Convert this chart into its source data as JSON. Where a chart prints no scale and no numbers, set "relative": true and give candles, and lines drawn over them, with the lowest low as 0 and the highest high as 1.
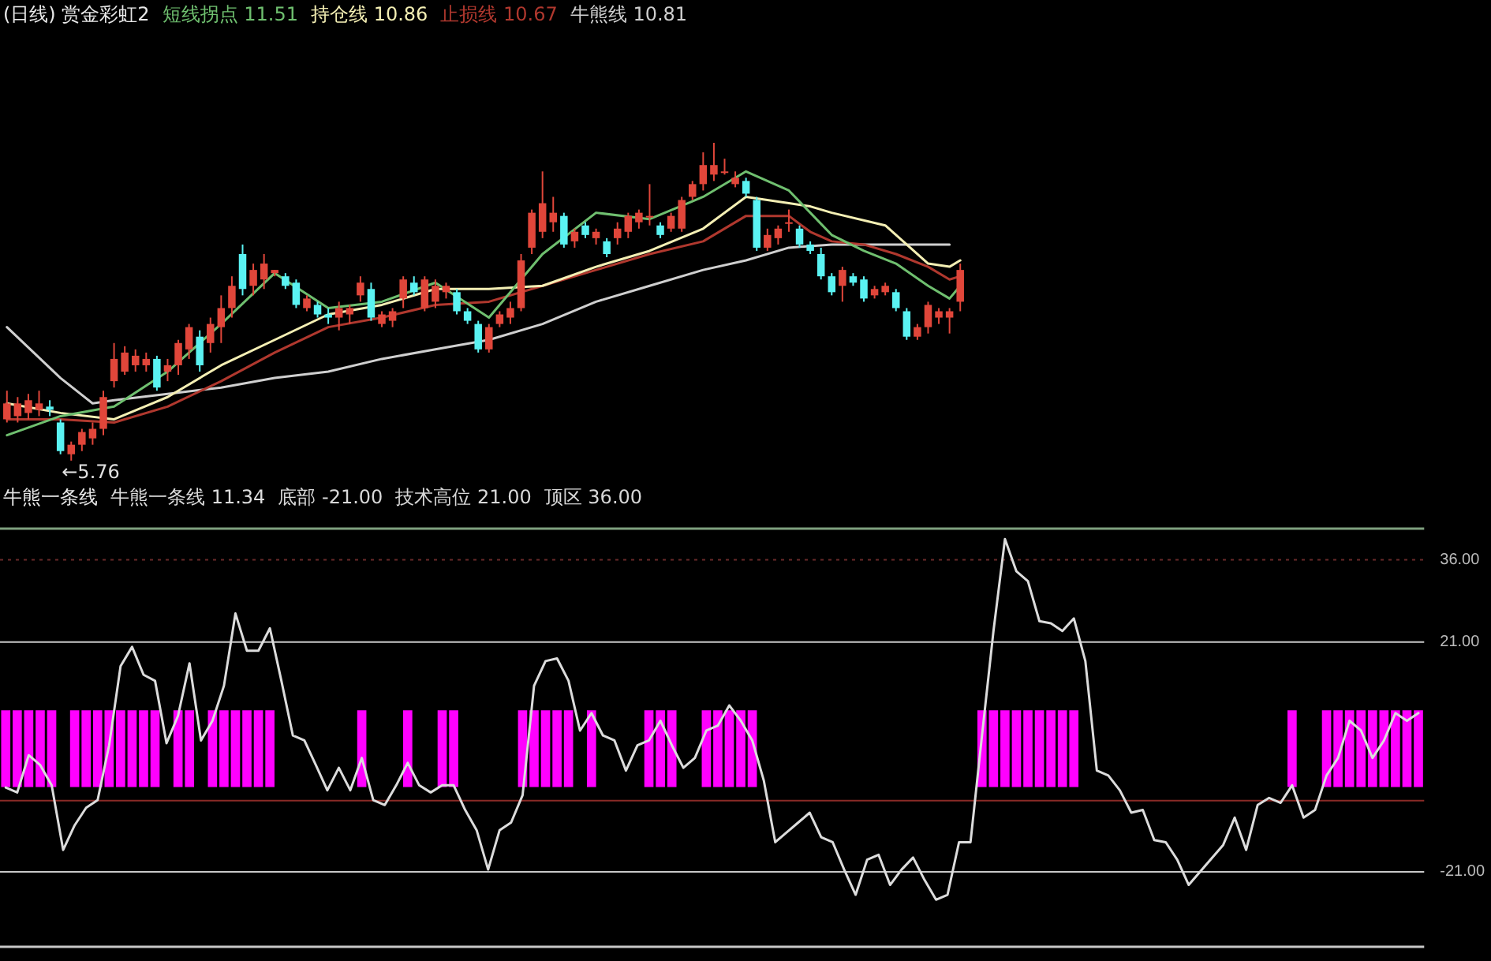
{
  "chart_data": [
    {
      "type": "candlestick",
      "title": "(日线) 赏金彩虹2",
      "relative": true,
      "tick_labels": false,
      "categories": [
        null,
        null,
        null,
        null,
        null,
        null,
        null,
        null,
        null,
        null,
        null,
        null,
        null,
        null,
        null,
        null,
        null,
        null,
        null,
        null,
        null,
        null,
        null,
        null,
        null,
        null,
        null,
        null,
        null,
        null,
        null,
        null,
        null,
        null,
        null,
        null,
        null,
        null,
        null,
        null,
        null,
        null,
        null,
        null,
        null,
        null,
        null,
        null,
        null,
        null,
        null,
        null,
        null,
        null,
        null,
        null,
        null,
        null,
        null,
        null,
        null,
        null,
        null,
        null,
        null,
        null,
        null,
        null,
        null,
        null,
        null,
        null,
        null,
        null,
        null,
        null,
        null,
        null,
        null,
        null,
        null,
        null,
        null,
        null,
        null,
        null,
        null,
        null,
        null,
        null
      ],
      "ohlc": [
        [
          0.13,
          0.22,
          0.12,
          0.18
        ],
        [
          0.14,
          0.2,
          0.12,
          0.18
        ],
        [
          0.15,
          0.21,
          0.13,
          0.19
        ],
        [
          0.16,
          0.22,
          0.14,
          0.18
        ],
        [
          0.17,
          0.19,
          0.14,
          0.16
        ],
        [
          0.12,
          0.13,
          0.02,
          0.03
        ],
        [
          0.02,
          0.06,
          0,
          0.05
        ],
        [
          0.05,
          0.1,
          0.03,
          0.09
        ],
        [
          0.07,
          0.12,
          0.05,
          0.1
        ],
        [
          0.1,
          0.22,
          0.08,
          0.2
        ],
        [
          0.25,
          0.37,
          0.23,
          0.32
        ],
        [
          0.28,
          0.36,
          0.27,
          0.34
        ],
        [
          0.3,
          0.35,
          0.28,
          0.33
        ],
        [
          0.3,
          0.34,
          0.28,
          0.32
        ],
        [
          0.32,
          0.33,
          0.22,
          0.23
        ],
        [
          0.28,
          0.32,
          0.25,
          0.3
        ],
        [
          0.3,
          0.38,
          0.27,
          0.37
        ],
        [
          0.35,
          0.43,
          0.32,
          0.42
        ],
        [
          0.39,
          0.41,
          0.28,
          0.3
        ],
        [
          0.37,
          0.45,
          0.34,
          0.43
        ],
        [
          0.42,
          0.52,
          0.37,
          0.48
        ],
        [
          0.48,
          0.58,
          0.45,
          0.55
        ],
        [
          0.65,
          0.68,
          0.52,
          0.54
        ],
        [
          0.55,
          0.62,
          0.52,
          0.6
        ],
        [
          0.57,
          0.65,
          0.54,
          0.62
        ],
        [
          0.59,
          0.6,
          0.58,
          0.6
        ],
        [
          0.58,
          0.59,
          0.54,
          0.55
        ],
        [
          0.56,
          0.57,
          0.48,
          0.49
        ],
        [
          0.48,
          0.52,
          0.47,
          0.51
        ],
        [
          0.49,
          0.5,
          0.45,
          0.46
        ],
        [
          0.46,
          0.48,
          0.43,
          0.45
        ],
        [
          0.45,
          0.5,
          0.41,
          0.48
        ],
        [
          0.46,
          0.49,
          0.43,
          0.48
        ],
        [
          0.52,
          0.58,
          0.5,
          0.56
        ],
        [
          0.54,
          0.56,
          0.44,
          0.45
        ],
        [
          0.43,
          0.47,
          0.42,
          0.46
        ],
        [
          0.44,
          0.48,
          0.42,
          0.47
        ],
        [
          0.51,
          0.58,
          0.48,
          0.57
        ],
        [
          0.56,
          0.58,
          0.52,
          0.53
        ],
        [
          0.48,
          0.58,
          0.47,
          0.57
        ],
        [
          0.5,
          0.57,
          0.48,
          0.55
        ],
        [
          0.53,
          0.56,
          0.51,
          0.55
        ],
        [
          0.53,
          0.54,
          0.46,
          0.47
        ],
        [
          0.47,
          0.48,
          0.43,
          0.44
        ],
        [
          0.43,
          0.44,
          0.34,
          0.35
        ],
        [
          0.35,
          0.43,
          0.34,
          0.42
        ],
        [
          0.43,
          0.47,
          0.42,
          0.46
        ],
        [
          0.45,
          0.5,
          0.43,
          0.48
        ],
        [
          0.48,
          0.65,
          0.47,
          0.63
        ],
        [
          0.67,
          0.79,
          0.65,
          0.78
        ],
        [
          0.72,
          0.91,
          0.7,
          0.81
        ],
        [
          0.75,
          0.83,
          0.72,
          0.78
        ],
        [
          0.77,
          0.78,
          0.67,
          0.68
        ],
        [
          0.69,
          0.73,
          0.67,
          0.72
        ],
        [
          0.74,
          0.75,
          0.7,
          0.71
        ],
        [
          0.7,
          0.73,
          0.68,
          0.72
        ],
        [
          0.69,
          0.7,
          0.64,
          0.65
        ],
        [
          0.7,
          0.75,
          0.68,
          0.73
        ],
        [
          0.72,
          0.78,
          0.7,
          0.77
        ],
        [
          0.75,
          0.79,
          0.73,
          0.78
        ],
        [
          0.77,
          0.87,
          0.74,
          0.77
        ],
        [
          0.74,
          0.75,
          0.7,
          0.71
        ],
        [
          0.73,
          0.78,
          0.72,
          0.77
        ],
        [
          0.73,
          0.83,
          0.72,
          0.82
        ],
        [
          0.83,
          0.88,
          0.82,
          0.87
        ],
        [
          0.87,
          0.97,
          0.85,
          0.93
        ],
        [
          0.9,
          1,
          0.88,
          0.93
        ],
        [
          0.91,
          0.95,
          0.9,
          0.91
        ],
        [
          0.87,
          0.91,
          0.86,
          0.89
        ],
        [
          0.88,
          0.89,
          0.83,
          0.84
        ],
        [
          0.82,
          0.83,
          0.66,
          0.67
        ],
        [
          0.67,
          0.73,
          0.66,
          0.71
        ],
        [
          0.7,
          0.74,
          0.68,
          0.73
        ],
        [
          0.75,
          0.79,
          0.72,
          0.75
        ],
        [
          0.73,
          0.74,
          0.67,
          0.68
        ],
        [
          0.68,
          0.69,
          0.65,
          0.66
        ],
        [
          0.65,
          0.67,
          0.57,
          0.58
        ],
        [
          0.58,
          0.59,
          0.52,
          0.53
        ],
        [
          0.55,
          0.61,
          0.5,
          0.6
        ],
        [
          0.58,
          0.59,
          0.55,
          0.56
        ],
        [
          0.57,
          0.58,
          0.5,
          0.51
        ],
        [
          0.52,
          0.55,
          0.51,
          0.54
        ],
        [
          0.53,
          0.56,
          0.52,
          0.55
        ],
        [
          0.53,
          0.54,
          0.47,
          0.48
        ],
        [
          0.47,
          0.48,
          0.38,
          0.39
        ],
        [
          0.39,
          0.43,
          0.38,
          0.42
        ],
        [
          0.42,
          0.5,
          0.4,
          0.49
        ],
        [
          0.45,
          0.48,
          0.43,
          0.47
        ],
        [
          0.45,
          0.48,
          0.4,
          0.47
        ],
        [
          0.5,
          0.62,
          0.47,
          0.6
        ]
      ],
      "colors": [
        "#e0463a",
        "#e0463a",
        "#e0463a",
        "#e0463a",
        "#5af2f2",
        "#5af2f2",
        "#e0463a",
        "#e0463a",
        "#e0463a",
        "#e0463a",
        "#e0463a",
        "#e0463a",
        "#e0463a",
        "#e0463a",
        "#5af2f2",
        "#e0463a",
        "#e0463a",
        "#e0463a",
        "#5af2f2",
        "#e0463a",
        "#e0463a",
        "#e0463a",
        "#5af2f2",
        "#e0463a",
        "#e0463a",
        "#e0463a",
        "#5af2f2",
        "#5af2f2",
        "#e0463a",
        "#5af2f2",
        "#5af2f2",
        "#e0463a",
        "#e0463a",
        "#e0463a",
        "#5af2f2",
        "#e0463a",
        "#e0463a",
        "#e0463a",
        "#5af2f2",
        "#e0463a",
        "#e0463a",
        "#e0463a",
        "#5af2f2",
        "#5af2f2",
        "#5af2f2",
        "#e0463a",
        "#e0463a",
        "#e0463a",
        "#e0463a",
        "#e0463a",
        "#e0463a",
        "#e0463a",
        "#5af2f2",
        "#e0463a",
        "#5af2f2",
        "#e0463a",
        "#5af2f2",
        "#e0463a",
        "#e0463a",
        "#e0463a",
        "#e0463a",
        "#5af2f2",
        "#e0463a",
        "#e0463a",
        "#e0463a",
        "#e0463a",
        "#e0463a",
        "#e0463a",
        "#e0463a",
        "#5af2f2",
        "#5af2f2",
        "#e0463a",
        "#e0463a",
        "#e0463a",
        "#5af2f2",
        "#5af2f2",
        "#5af2f2",
        "#5af2f2",
        "#e0463a",
        "#5af2f2",
        "#5af2f2",
        "#e0463a",
        "#e0463a",
        "#5af2f2",
        "#5af2f2",
        "#e0463a",
        "#e0463a",
        "#e0463a",
        "#e0463a",
        "#e0463a"
      ],
      "series": [
        {
          "type": "line",
          "name": "短线拐点",
          "color": "#6fbf6f",
          "values": [
            0.08,
            null,
            null,
            null,
            null,
            0.14,
            null,
            null,
            null,
            null,
            0.17,
            null,
            null,
            null,
            null,
            0.28,
            null,
            null,
            null,
            null,
            0.43,
            null,
            null,
            null,
            null,
            0.59,
            null,
            null,
            null,
            null,
            0.48,
            null,
            null,
            null,
            null,
            0.5,
            null,
            null,
            null,
            null,
            0.56,
            null,
            null,
            null,
            null,
            0.45,
            null,
            null,
            null,
            null,
            0.65,
            null,
            null,
            null,
            null,
            0.78,
            null,
            null,
            null,
            null,
            0.76,
            null,
            null,
            null,
            null,
            0.83,
            null,
            null,
            null,
            0.91,
            null,
            null,
            null,
            0.85,
            null,
            0.78,
            null,
            0.71,
            null,
            null,
            0.66,
            null,
            null,
            0.62,
            null,
            null,
            0.55,
            null,
            0.51,
            0.55
          ]
        },
        {
          "type": "line",
          "name": "持仓线",
          "color": "#f4efb4",
          "values": [
            0.18,
            null,
            null,
            null,
            null,
            0.15,
            null,
            null,
            null,
            null,
            0.13,
            null,
            null,
            null,
            null,
            0.2,
            null,
            null,
            null,
            null,
            0.3,
            null,
            null,
            null,
            null,
            0.38,
            null,
            null,
            null,
            null,
            0.46,
            null,
            null,
            null,
            null,
            0.49,
            null,
            null,
            null,
            null,
            0.54,
            null,
            null,
            null,
            null,
            0.54,
            null,
            null,
            null,
            null,
            0.55,
            null,
            null,
            null,
            null,
            0.61,
            null,
            null,
            null,
            null,
            0.66,
            null,
            null,
            null,
            null,
            0.73,
            null,
            null,
            null,
            0.83,
            null,
            null,
            null,
            0.81,
            null,
            0.8,
            null,
            0.78,
            null,
            null,
            null,
            null,
            0.74,
            null,
            0.68,
            null,
            0.62,
            null,
            0.61,
            0.63
          ]
        },
        {
          "type": "line",
          "name": "止损线",
          "color": "#b0382e",
          "values": [
            0.13,
            null,
            null,
            null,
            null,
            0.13,
            null,
            null,
            null,
            null,
            0.12,
            null,
            null,
            null,
            null,
            0.17,
            null,
            null,
            null,
            null,
            0.25,
            null,
            null,
            null,
            null,
            0.34,
            null,
            null,
            null,
            null,
            0.42,
            null,
            null,
            null,
            null,
            0.45,
            null,
            null,
            null,
            null,
            0.49,
            null,
            null,
            null,
            null,
            0.5,
            null,
            null,
            null,
            null,
            0.55,
            null,
            null,
            null,
            null,
            0.6,
            null,
            null,
            null,
            null,
            0.65,
            null,
            null,
            null,
            null,
            0.69,
            null,
            null,
            null,
            0.77,
            null,
            null,
            null,
            0.77,
            null,
            0.72,
            null,
            0.69,
            null,
            null,
            0.68,
            null,
            null,
            0.65,
            null,
            null,
            0.61,
            null,
            0.57,
            0.58
          ]
        },
        {
          "type": "line",
          "name": "牛熊线",
          "color": "#cfcfcf",
          "values": [
            0.42,
            null,
            null,
            null,
            null,
            0.26,
            null,
            null,
            0.18,
            null,
            0.19,
            null,
            null,
            null,
            null,
            0.21,
            null,
            null,
            null,
            null,
            0.23,
            null,
            null,
            null,
            null,
            0.26,
            null,
            null,
            null,
            null,
            0.28,
            null,
            null,
            null,
            null,
            0.32,
            null,
            null,
            null,
            null,
            0.35,
            null,
            null,
            null,
            null,
            0.38,
            null,
            null,
            null,
            null,
            0.43,
            null,
            null,
            null,
            null,
            0.5,
            null,
            null,
            null,
            null,
            0.55,
            null,
            null,
            null,
            null,
            0.6,
            null,
            null,
            null,
            0.63,
            null,
            null,
            null,
            0.67,
            null,
            null,
            null,
            0.68,
            null,
            null,
            null,
            null,
            null,
            0.68,
            null,
            null,
            null,
            null,
            0.68,
            null
          ]
        }
      ],
      "annotations": [
        "11.51",
        "10.86",
        "10.67",
        "10.81",
        "←5.76"
      ]
    },
    {
      "type": "line",
      "title": "牛熊一条线",
      "tick_labels": "y",
      "ylim": [
        -35,
        42
      ],
      "yticks": [
        {
          "value": -21,
          "label": "-21.00"
        },
        {
          "value": 21,
          "label": "21.00"
        },
        {
          "value": 36,
          "label": "36.00"
        }
      ],
      "categories": [
        null,
        null,
        null,
        null,
        null,
        null,
        null,
        null,
        null,
        null,
        null,
        null,
        null,
        null,
        null,
        null,
        null,
        null,
        null,
        null,
        null,
        null,
        null,
        null,
        null,
        null,
        null,
        null,
        null,
        null,
        null,
        null,
        null,
        null,
        null,
        null,
        null,
        null,
        null,
        null,
        null,
        null,
        null,
        null,
        null,
        null,
        null,
        null,
        null,
        null,
        null,
        null,
        null,
        null,
        null,
        null,
        null,
        null,
        null,
        null,
        null,
        null,
        null,
        null,
        null,
        null,
        null,
        null,
        null,
        null,
        null,
        null,
        null,
        null,
        null,
        null,
        null,
        null,
        null,
        null,
        null,
        null,
        null,
        null,
        null,
        null,
        null,
        null,
        null,
        null,
        null,
        null,
        null,
        null,
        null,
        null,
        null,
        null,
        null,
        null,
        null,
        null,
        null,
        null,
        null,
        null,
        null,
        null,
        null,
        null,
        null,
        null,
        null,
        null,
        null,
        null,
        null,
        null,
        null,
        null,
        null,
        null,
        null,
        null
      ],
      "series": [
        {
          "type": "line",
          "name": "牛熊一条线",
          "color": "#dcdcdc",
          "values": [
            -5.6,
            -6.5,
            0.3,
            -1.5,
            -5.2,
            -17.0,
            -12.5,
            -9.3,
            -7.9,
            2.1,
            16.6,
            20.1,
            15.0,
            13.9,
            2.5,
            7.5,
            17.1,
            3.0,
            6.6,
            13.0,
            26.2,
            19.4,
            19.4,
            23.5,
            13.9,
            3.9,
            3.0,
            -1.5,
            -6.1,
            -2.0,
            -6.1,
            -0.2,
            -7.9,
            -8.8,
            -5.2,
            -1.1,
            -5.2,
            -6.5,
            -5.2,
            -5.2,
            -9.7,
            -13.4,
            -20.6,
            -13.4,
            -12.0,
            -7.0,
            13.0,
            17.5,
            18.0,
            13.9,
            4.8,
            8.0,
            3.9,
            3.0,
            -2.5,
            2.1,
            3.0,
            6.6,
            2.1,
            -2.0,
            -0.2,
            4.8,
            5.7,
            9.4,
            6.6,
            3.0,
            -4.3,
            -15.6,
            -13.8,
            -12.0,
            -10.2,
            -14.7,
            -15.6,
            -20.6,
            -25.2,
            -18.8,
            -17.9,
            -23.4,
            -20.6,
            -18.4,
            -22.5,
            -26.1,
            -25.2,
            -15.6,
            -15.6,
            3.9,
            23.0,
            39.8,
            33.9,
            32.1,
            24.8,
            24.4,
            23.0,
            25.3,
            17.5,
            -2.5,
            -3.4,
            -6.1,
            -10.2,
            -9.7,
            -15.2,
            -15.6,
            -18.8,
            -23.4,
            null,
            null,
            -16.1,
            -11.1,
            -17.0,
            -8.8,
            -7.5,
            -8.4,
            -5.2,
            -11.1,
            -9.7,
            -3.4,
            -0.2,
            6.6,
            4.8,
            -0.2,
            3.0,
            8.0,
            6.6,
            8.0
          ]
        },
        {
          "type": "bar",
          "color": "#ff00ff",
          "base": [
            -5.5,
            -5.5,
            -5.5,
            -5.5,
            -5.5,
            null,
            -5.5,
            -5.5,
            -5.5,
            -5.5,
            -5.5,
            -5.5,
            -5.5,
            -5.5,
            null,
            -5.5,
            -5.5,
            null,
            -5.5,
            -5.5,
            -5.5,
            -5.5,
            -5.5,
            -5.5,
            null,
            null,
            null,
            null,
            null,
            null,
            null,
            -5.5,
            null,
            null,
            null,
            -5.5,
            null,
            null,
            -5.5,
            -5.5,
            null,
            null,
            null,
            null,
            null,
            -5.5,
            -5.5,
            -5.5,
            -5.5,
            -5.5,
            null,
            -5.5,
            null,
            null,
            null,
            null,
            -5.5,
            -5.5,
            -5.5,
            null,
            null,
            -5.5,
            -5.5,
            -5.5,
            -5.5,
            -5.5,
            null,
            null,
            null,
            null,
            null,
            null,
            null,
            null,
            null,
            null,
            null,
            null,
            null,
            null,
            null,
            null,
            null,
            null,
            null,
            -5.5,
            -5.5,
            -5.5,
            -5.5,
            -5.5,
            -5.5,
            -5.5,
            -5.5,
            -5.5,
            null,
            null,
            null,
            null,
            null,
            null,
            null,
            null,
            null,
            null,
            null,
            null,
            null,
            null,
            null,
            null,
            null,
            null,
            -5.5,
            null,
            null,
            -5.5,
            -5.5,
            -5.5,
            -5.5,
            -5.5,
            -5.5,
            -5.5,
            -5.5,
            -5.5
          ],
          "values": [
            14,
            14,
            14,
            14,
            14,
            null,
            14,
            14,
            14,
            14,
            14,
            14,
            14,
            14,
            null,
            14,
            14,
            null,
            14,
            14,
            14,
            14,
            14,
            14,
            null,
            null,
            null,
            null,
            null,
            null,
            null,
            14,
            null,
            null,
            null,
            14,
            null,
            null,
            14,
            14,
            null,
            null,
            null,
            null,
            null,
            14,
            14,
            14,
            14,
            14,
            null,
            14,
            null,
            null,
            null,
            null,
            14,
            14,
            14,
            null,
            null,
            14,
            14,
            14,
            14,
            14,
            null,
            null,
            null,
            null,
            null,
            null,
            null,
            null,
            null,
            null,
            null,
            null,
            null,
            null,
            null,
            null,
            null,
            null,
            null,
            14,
            14,
            14,
            14,
            14,
            14,
            14,
            14,
            14,
            null,
            null,
            null,
            null,
            null,
            null,
            null,
            null,
            null,
            null,
            null,
            null,
            null,
            null,
            null,
            null,
            null,
            null,
            14,
            null,
            null,
            14,
            14,
            14,
            14,
            14,
            14,
            14,
            14,
            14
          ]
        }
      ],
      "ref_lines": [
        {
          "axis": "y",
          "value": -21,
          "color": "#c8c8c8"
        },
        {
          "axis": "y",
          "value": 21,
          "color": "#c8c8c8"
        },
        {
          "axis": "y",
          "value": 36,
          "color": "#6a2a2a",
          "line_style": "dotted"
        },
        {
          "axis": "y",
          "value": -8,
          "color": "#8a2a26"
        }
      ],
      "annotations": [
        "11.34",
        "底部 -21.00",
        "技术高位 21.00",
        "顶区 36.00"
      ]
    }
  ]
}
